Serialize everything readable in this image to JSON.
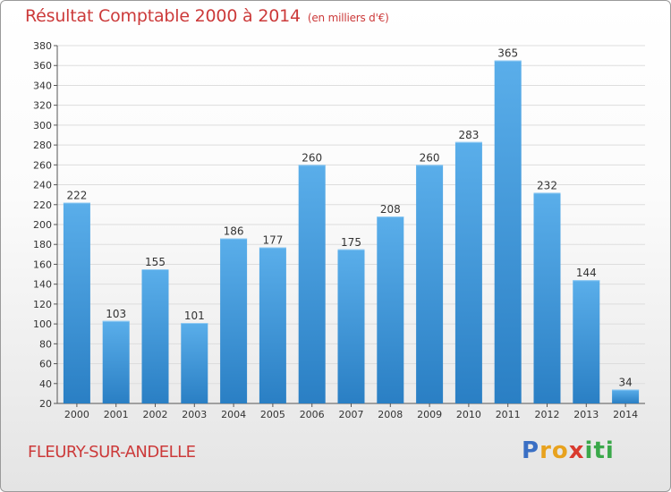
{
  "header": {
    "title": "Résultat Comptable 2000 à 2014",
    "subtitle": "(en milliers d'€)"
  },
  "footer": {
    "town": "FLEURY-SUR-ANDELLE",
    "logo_letters": [
      {
        "ch": "P",
        "color": "#3a6fc4"
      },
      {
        "ch": "r",
        "color": "#e8a21e"
      },
      {
        "ch": "o",
        "color": "#e8a21e"
      },
      {
        "ch": "x",
        "color": "#d93a2e"
      },
      {
        "ch": "i",
        "color": "#3aa84a"
      },
      {
        "ch": "t",
        "color": "#3aa84a"
      },
      {
        "ch": "i",
        "color": "#3aa84a"
      }
    ]
  },
  "colors": {
    "title": "#cc3a3a",
    "bar_top": "#5aaeea",
    "bar_bottom": "#2a7fc4"
  },
  "chart_data": {
    "type": "bar",
    "title": "Résultat Comptable 2000 à 2014",
    "subtitle": "(en milliers d'€)",
    "categories": [
      "2000",
      "2001",
      "2002",
      "2003",
      "2004",
      "2005",
      "2006",
      "2007",
      "2008",
      "2009",
      "2010",
      "2011",
      "2012",
      "2013",
      "2014"
    ],
    "values": [
      222,
      103,
      155,
      101,
      186,
      177,
      260,
      175,
      208,
      260,
      283,
      365,
      232,
      144,
      34
    ],
    "ylim": [
      20,
      380
    ],
    "yticks": [
      20,
      40,
      60,
      80,
      100,
      120,
      140,
      160,
      180,
      200,
      220,
      240,
      260,
      280,
      300,
      320,
      340,
      360,
      380
    ],
    "grid": true,
    "xlabel": "",
    "ylabel": ""
  }
}
